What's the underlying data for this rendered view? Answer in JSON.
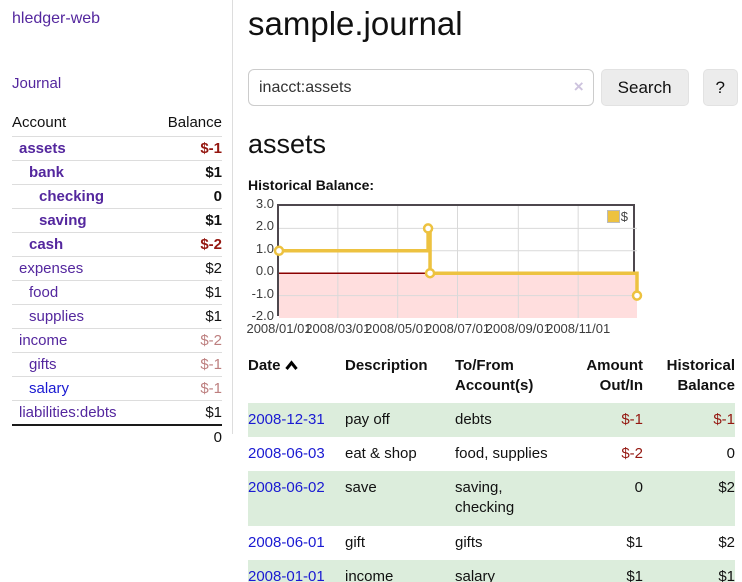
{
  "colors": {
    "purple": "#54279e",
    "blue": "#1a1ad2",
    "negative": "#941710",
    "negative_faded": "#bd7f7f",
    "series_yellow": "#edc240",
    "row_green": "#dceddc",
    "zero_line": "#8b0000",
    "negative_region": "#ffdede",
    "gridline": "#d9d9d9"
  },
  "brand": "hledger-web",
  "sidebar": {
    "journal_link": "Journal",
    "header": {
      "account": "Account",
      "balance": "Balance"
    },
    "accounts": [
      {
        "name": "assets",
        "indent": 0,
        "bold": true,
        "balance": "$-1",
        "balance_class": "neg"
      },
      {
        "name": "bank",
        "indent": 1,
        "bold": true,
        "balance": "$1",
        "balance_class": ""
      },
      {
        "name": "checking",
        "indent": 2,
        "bold": true,
        "balance": "0",
        "balance_class": ""
      },
      {
        "name": "saving",
        "indent": 2,
        "bold": true,
        "balance": "$1",
        "balance_class": ""
      },
      {
        "name": "cash",
        "indent": 1,
        "bold": true,
        "balance": "$-2",
        "balance_class": "neg"
      },
      {
        "name": "expenses",
        "indent": 0,
        "bold": false,
        "balance": "$2",
        "balance_class": ""
      },
      {
        "name": "food",
        "indent": 1,
        "bold": false,
        "balance": "$1",
        "balance_class": ""
      },
      {
        "name": "supplies",
        "indent": 1,
        "bold": false,
        "balance": "$1",
        "balance_class": ""
      },
      {
        "name": "income",
        "indent": 0,
        "bold": false,
        "balance": "$-2",
        "balance_class": "neg-faded"
      },
      {
        "name": "gifts",
        "indent": 1,
        "bold": false,
        "balance": "$-1",
        "balance_class": "neg-faded"
      },
      {
        "name": "salary",
        "indent": 1,
        "bold": false,
        "blue": true,
        "balance": "$-1",
        "balance_class": "neg-faded"
      },
      {
        "name": "liabilities:debts",
        "indent": 0,
        "bold": false,
        "balance": "$1",
        "balance_class": ""
      }
    ],
    "total": "0"
  },
  "header": {
    "title": "sample.journal"
  },
  "search": {
    "value": "inacct:assets",
    "clear_icon": "×",
    "button_label": "Search",
    "help_label": "?"
  },
  "account_page": {
    "heading": "assets",
    "chart_label": "Historical Balance:"
  },
  "chart_data": {
    "type": "line",
    "step": true,
    "title": "Historical Balance",
    "legend": [
      {
        "label": "$",
        "color": "#edc240"
      }
    ],
    "legend_position": "top-right",
    "x_start": "2008-01-01",
    "x_end": "2008-12-31",
    "series": [
      {
        "name": "$",
        "points": [
          {
            "date": "2008-01-01",
            "value": 1
          },
          {
            "date": "2008-06-01",
            "value": 2
          },
          {
            "date": "2008-06-03",
            "value": 0
          },
          {
            "date": "2008-12-31",
            "value": -1
          }
        ]
      }
    ],
    "ylim": [
      -2,
      3
    ],
    "yticks": [
      "3.0",
      "2.0",
      "1.0",
      "0.0",
      "-1.0",
      "-2.0"
    ],
    "xticks": [
      "2008/01/01",
      "2008/03/01",
      "2008/05/01",
      "2008/07/01",
      "2008/09/01",
      "2008/11/01"
    ],
    "grid": true,
    "negative_region_shaded": true
  },
  "register": {
    "columns": {
      "date": "Date",
      "description": "Description",
      "accounts_line1": "To/From",
      "accounts_line2": "Account(s)",
      "amount_line1": "Amount",
      "amount_line2": "Out/In",
      "balance_line1": "Historical",
      "balance_line2": "Balance"
    },
    "rows": [
      {
        "date": "2008-12-31",
        "description": "pay off",
        "accounts": "debts",
        "amount": "$-1",
        "balance": "$-1"
      },
      {
        "date": "2008-06-03",
        "description": "eat & shop",
        "accounts": "food, supplies",
        "amount": "$-2",
        "balance": "0"
      },
      {
        "date": "2008-06-02",
        "description": "save",
        "accounts": "saving, checking",
        "amount": "0",
        "balance": "$2"
      },
      {
        "date": "2008-06-01",
        "description": "gift",
        "accounts": "gifts",
        "amount": "$1",
        "balance": "$2"
      },
      {
        "date": "2008-01-01",
        "description": "income",
        "accounts": "salary",
        "amount": "$1",
        "balance": "$1"
      }
    ]
  }
}
